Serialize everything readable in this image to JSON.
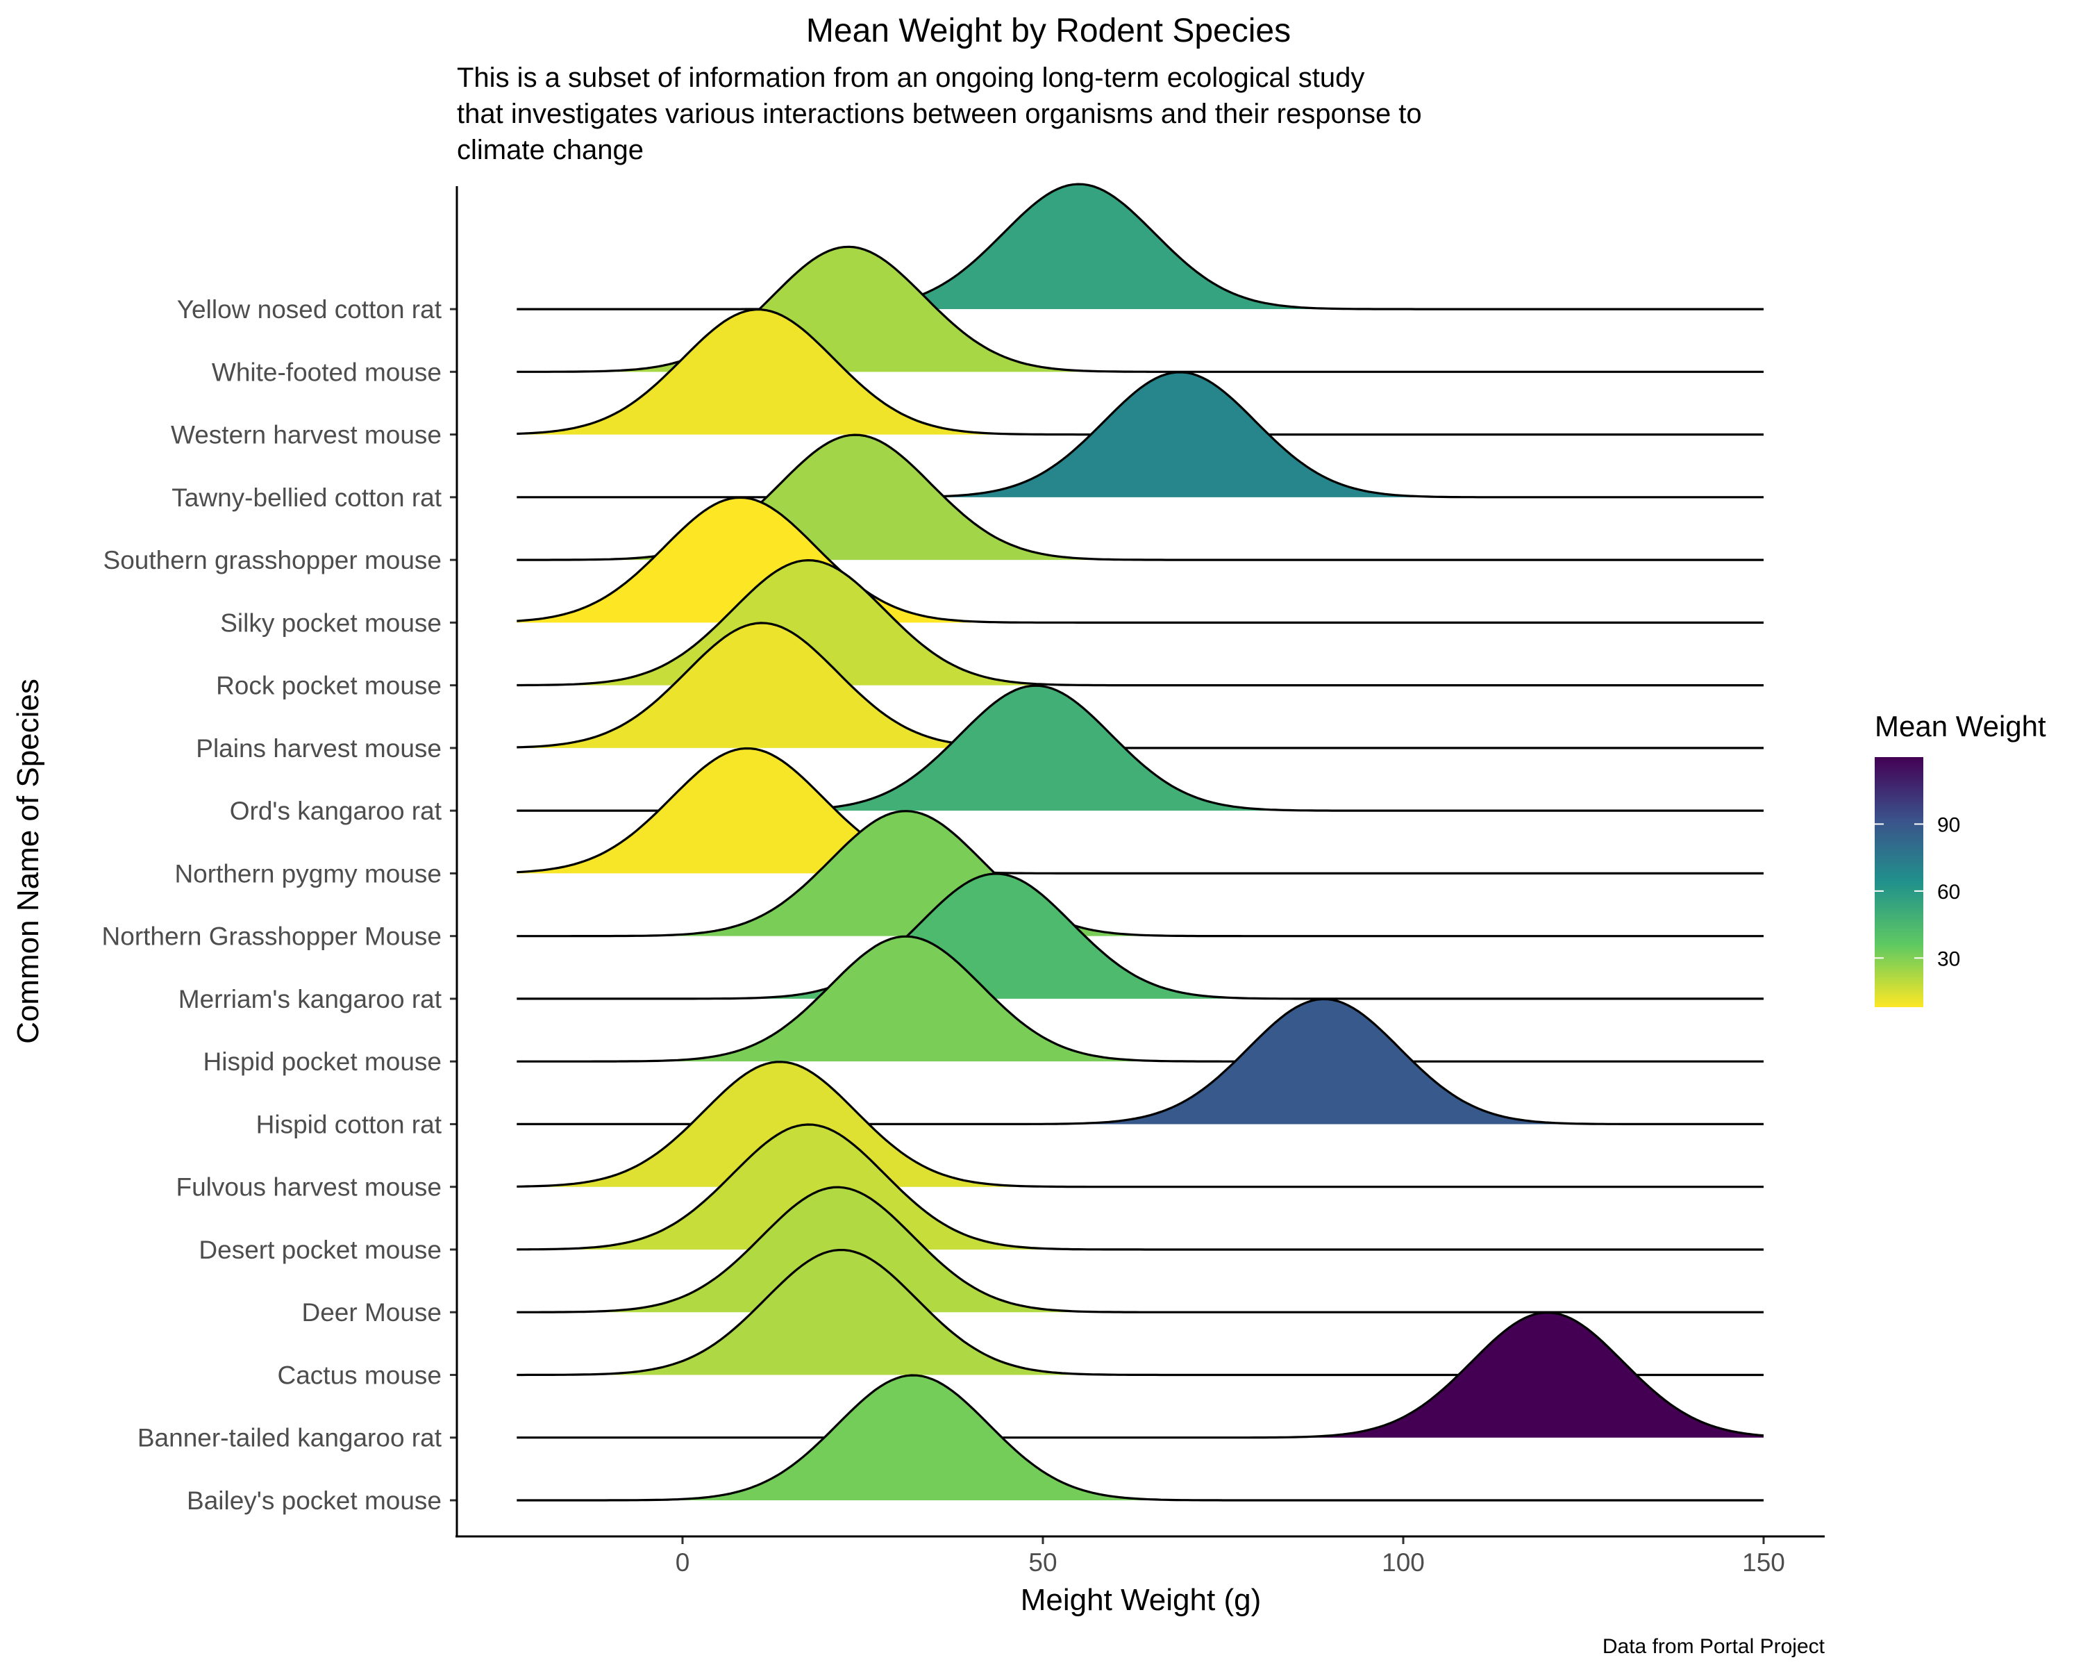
{
  "chart_data": {
    "type": "ridgeline",
    "title": "Mean Weight by Rodent Species",
    "subtitle_lines": [
      "This is a subset of information from an ongoing long-term ecological study",
      "that investigates various interactions between organisms and their response to",
      "climate change"
    ],
    "xlabel": "Meight Weight (g)",
    "ylabel": "Common Name of Species",
    "caption": "Data from Portal Project",
    "xlim": [
      -31,
      159
    ],
    "x_ticks": [
      0,
      50,
      100,
      150
    ],
    "density_range": [
      -23,
      150
    ],
    "grid": false,
    "legend": {
      "title": "Mean Weight",
      "placement": "right",
      "ticks": [
        30,
        60,
        90
      ],
      "range": [
        8,
        120
      ],
      "colors": [
        "#fde725",
        "#5ec962",
        "#21918c",
        "#3b528b",
        "#440154"
      ]
    },
    "series": [
      {
        "name": "Bailey's pocket mouse",
        "mean": 32
      },
      {
        "name": "Banner-tailed kangaroo rat",
        "mean": 120
      },
      {
        "name": "Cactus mouse",
        "mean": 22
      },
      {
        "name": "Deer Mouse",
        "mean": 21.5
      },
      {
        "name": "Desert pocket mouse",
        "mean": 17.5
      },
      {
        "name": "Fulvous harvest mouse",
        "mean": 13.5
      },
      {
        "name": "Hispid cotton rat",
        "mean": 89
      },
      {
        "name": "Hispid pocket mouse",
        "mean": 31
      },
      {
        "name": "Merriam's kangaroo rat",
        "mean": 43.5
      },
      {
        "name": "Northern Grasshopper Mouse",
        "mean": 31
      },
      {
        "name": "Northern pygmy mouse",
        "mean": 9
      },
      {
        "name": "Ord's kangaroo rat",
        "mean": 49
      },
      {
        "name": "Plains harvest mouse",
        "mean": 11
      },
      {
        "name": "Rock pocket mouse",
        "mean": 17.5
      },
      {
        "name": "Silky pocket mouse",
        "mean": 8
      },
      {
        "name": "Southern grasshopper mouse",
        "mean": 24
      },
      {
        "name": "Tawny-bellied cotton rat",
        "mean": 69
      },
      {
        "name": "Western harvest mouse",
        "mean": 10.5
      },
      {
        "name": "White-footed mouse",
        "mean": 23
      },
      {
        "name": "Yellow nosed cotton rat",
        "mean": 55
      }
    ]
  }
}
